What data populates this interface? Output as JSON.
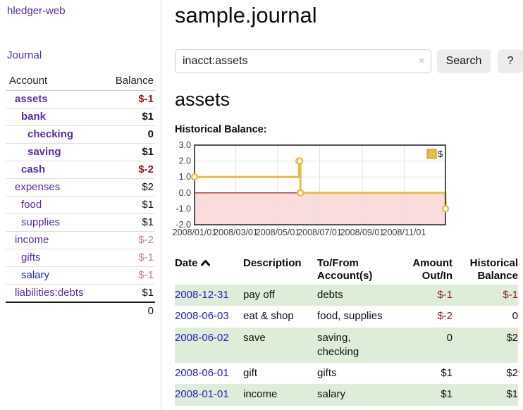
{
  "sidebar": {
    "brand": "hledger-web",
    "nav": {
      "journal": "Journal"
    },
    "table": {
      "headers": {
        "account": "Account",
        "balance": "Balance"
      },
      "rows": [
        {
          "name": "assets",
          "balance": "$-1"
        },
        {
          "name": "bank",
          "balance": "$1"
        },
        {
          "name": "checking",
          "balance": "0"
        },
        {
          "name": "saving",
          "balance": "$1"
        },
        {
          "name": "cash",
          "balance": "$-2"
        },
        {
          "name": "expenses",
          "balance": "$2"
        },
        {
          "name": "food",
          "balance": "$1"
        },
        {
          "name": "supplies",
          "balance": "$1"
        },
        {
          "name": "income",
          "balance": "$-2"
        },
        {
          "name": "gifts",
          "balance": "$-1"
        },
        {
          "name": "salary",
          "balance": "$-1"
        },
        {
          "name": "liabilities:debts",
          "balance": "$1"
        }
      ],
      "total": "0"
    }
  },
  "main": {
    "title": "sample.journal",
    "search": {
      "value": "inacct:assets",
      "clear": "×",
      "button": "Search",
      "help": "?"
    },
    "account_heading": "assets",
    "chart_title": "Historical Balance:",
    "register": {
      "headers": {
        "date": "Date",
        "description": "Description",
        "accounts": [
          "To/From",
          "Account(s)"
        ],
        "amount": [
          "Amount",
          "Out/In"
        ],
        "balance": [
          "Historical",
          "Balance"
        ]
      },
      "rows": [
        {
          "date": "2008-12-31",
          "description": "pay off",
          "accounts": "debts",
          "amount": "$-1",
          "balance": "$-1"
        },
        {
          "date": "2008-06-03",
          "description": "eat & shop",
          "accounts": "food, supplies",
          "amount": "$-2",
          "balance": "0"
        },
        {
          "date": "2008-06-02",
          "description": "save",
          "accounts": "saving, checking",
          "amount": "0",
          "balance": "$2"
        },
        {
          "date": "2008-06-01",
          "description": "gift",
          "accounts": "gifts",
          "amount": "$1",
          "balance": "$2"
        },
        {
          "date": "2008-01-01",
          "description": "income",
          "accounts": "salary",
          "amount": "$1",
          "balance": "$1"
        }
      ]
    }
  },
  "colors": {
    "link_purple": "#572d9c",
    "link_blue": "#2222cc",
    "negative_strong": "#8b1a1a",
    "negative_soft": "#bc8181",
    "row_green": "#deedd8",
    "chart_gold": "#e6bd45",
    "zero_line": "#990000",
    "negative_region": "#fbdcdc"
  },
  "chart_data": {
    "type": "line",
    "step": true,
    "title": "Historical Balance",
    "xlabel": "",
    "ylabel": "",
    "series": [
      {
        "name": "$",
        "color": "#e6bd45",
        "x": [
          "2008-01-01",
          "2008-06-01",
          "2008-06-02",
          "2008-06-03",
          "2008-12-31"
        ],
        "y": [
          1,
          2,
          2,
          0,
          -1
        ]
      }
    ],
    "x_ticks": [
      {
        "date": "2008-01-01",
        "label": "2008/01/01"
      },
      {
        "date": "2008-03-01",
        "label": "2008/03/01"
      },
      {
        "date": "2008-05-01",
        "label": "2008/05/01"
      },
      {
        "date": "2008-07-01",
        "label": "2008/07/01"
      },
      {
        "date": "2008-09-01",
        "label": "2008/09/01"
      },
      {
        "date": "2008-11-01",
        "label": "2008/11/01"
      }
    ],
    "y_ticks": [
      {
        "value": 3,
        "label": "3.0"
      },
      {
        "value": 2,
        "label": "2.0"
      },
      {
        "value": 1,
        "label": "1.0"
      },
      {
        "value": 0,
        "label": "0.0"
      },
      {
        "value": -1,
        "label": "-1.0"
      },
      {
        "value": -2,
        "label": "-2.0"
      }
    ],
    "xlim": [
      "2008-01-01",
      "2008-12-31"
    ],
    "ylim": [
      -2,
      3
    ],
    "grid": true,
    "legend": {
      "label": "$",
      "position": "top-right"
    },
    "zero_line_color": "#990000",
    "negative_region_color": "#fbdcdc"
  }
}
